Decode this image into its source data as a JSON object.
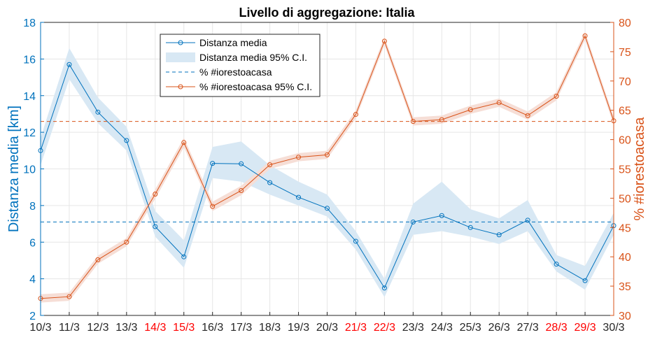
{
  "chart_data": {
    "type": "line",
    "title": "Livello di aggregazione: Italia",
    "x": [
      "10/3",
      "11/3",
      "12/3",
      "13/3",
      "14/3",
      "15/3",
      "16/3",
      "17/3",
      "18/3",
      "19/3",
      "20/3",
      "21/3",
      "22/3",
      "23/3",
      "24/3",
      "25/3",
      "26/3",
      "27/3",
      "28/3",
      "29/3",
      "30/3"
    ],
    "weekend_labels": [
      "14/3",
      "15/3",
      "21/3",
      "22/3",
      "28/3",
      "29/3"
    ],
    "ylabel_left": "Distanza media [km]",
    "ylabel_right": "% #iorestoacasa",
    "ylim_left": [
      2,
      18
    ],
    "ylim_right": [
      30,
      80
    ],
    "yticks_left": [
      2,
      4,
      6,
      8,
      10,
      12,
      14,
      16,
      18
    ],
    "yticks_right": [
      30,
      35,
      40,
      45,
      50,
      55,
      60,
      65,
      70,
      75,
      80
    ],
    "grid": true,
    "legend_position": "top-center",
    "colors": {
      "left": "#0072BD",
      "right": "#D95319",
      "left_band": "#d8e8f4",
      "right_band": "#f6ded6",
      "weekend": "#ff0000"
    },
    "series": [
      {
        "name": "Distanza media",
        "axis": "left",
        "style": "line-marker",
        "values": [
          11.0,
          15.7,
          13.1,
          11.55,
          6.85,
          5.2,
          10.3,
          10.28,
          9.25,
          8.45,
          7.85,
          6.05,
          3.5,
          7.1,
          7.45,
          6.8,
          6.4,
          7.2,
          4.8,
          3.9,
          6.9
        ]
      },
      {
        "name": "Distanza media 95% C.I.",
        "axis": "left",
        "style": "band",
        "lower": [
          10.2,
          14.9,
          12.5,
          11.0,
          6.3,
          4.6,
          9.5,
          9.3,
          8.6,
          8.0,
          7.4,
          5.6,
          3.0,
          6.4,
          6.6,
          6.3,
          5.9,
          6.6,
          4.4,
          3.4,
          6.4
        ],
        "upper": [
          11.7,
          16.6,
          13.9,
          12.3,
          7.7,
          6.1,
          11.2,
          11.5,
          10.2,
          9.3,
          8.6,
          6.6,
          4.0,
          8.1,
          9.3,
          7.8,
          7.3,
          8.3,
          5.3,
          4.7,
          7.6
        ]
      },
      {
        "name": "% #iorestoacasa",
        "axis": "left",
        "style": "dashed",
        "values": [
          7.1,
          7.1,
          7.1,
          7.1,
          7.1,
          7.1,
          7.1,
          7.1,
          7.1,
          7.1,
          7.1,
          7.1,
          7.1,
          7.1,
          7.1,
          7.1,
          7.1,
          7.1,
          7.1,
          7.1,
          7.1
        ]
      },
      {
        "name": "% #iorestoacasa 95% C.I.",
        "axis": "right",
        "style": "line-marker-band",
        "values": [
          32.9,
          33.2,
          39.5,
          42.5,
          50.7,
          59.5,
          48.6,
          51.3,
          55.7,
          57.0,
          57.4,
          64.3,
          76.8,
          63.1,
          63.4,
          65.1,
          66.3,
          64.1,
          67.4,
          77.7,
          63.2
        ],
        "lower": [
          32.2,
          32.5,
          38.8,
          41.8,
          49.9,
          58.7,
          47.8,
          50.5,
          55.0,
          56.3,
          56.7,
          63.6,
          76.1,
          62.4,
          62.7,
          64.4,
          65.6,
          63.4,
          66.7,
          77.0,
          62.5
        ],
        "upper": [
          33.6,
          33.9,
          40.2,
          43.2,
          51.5,
          60.3,
          49.4,
          52.1,
          56.4,
          57.7,
          58.1,
          65.0,
          77.5,
          63.8,
          64.1,
          65.8,
          67.0,
          64.8,
          68.1,
          78.4,
          63.9
        ]
      },
      {
        "axis": "right",
        "style": "dashed",
        "values": [
          63.1,
          63.1,
          63.1,
          63.1,
          63.1,
          63.1,
          63.1,
          63.1,
          63.1,
          63.1,
          63.1,
          63.1,
          63.1,
          63.1,
          63.1,
          63.1,
          63.1,
          63.1,
          63.1,
          63.1,
          63.1
        ]
      }
    ]
  }
}
